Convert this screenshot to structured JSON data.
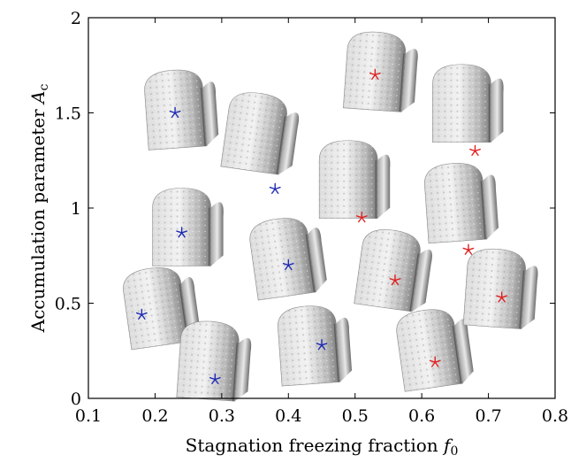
{
  "chart_data": {
    "type": "scatter",
    "title": "",
    "xlabel": "Stagnation freezing fraction",
    "xlabel_symbol": "f",
    "xlabel_subscript": "0",
    "ylabel": "Accumulation parameter",
    "ylabel_symbol": "A",
    "ylabel_subscript": "c",
    "xlim": [
      0.1,
      0.8
    ],
    "ylim": [
      0,
      2
    ],
    "xticks": [
      "0.1",
      "0.2",
      "0.3",
      "0.4",
      "0.5",
      "0.6",
      "0.7",
      "0.8"
    ],
    "yticks": [
      "0",
      "0.5",
      "1",
      "1.5",
      "2"
    ],
    "grid": false,
    "marker": "star",
    "series": [
      {
        "color": "#1f2bb5",
        "points": [
          {
            "x": 0.18,
            "y": 0.44
          },
          {
            "x": 0.23,
            "y": 1.5
          },
          {
            "x": 0.24,
            "y": 0.87
          },
          {
            "x": 0.29,
            "y": 0.1
          },
          {
            "x": 0.38,
            "y": 1.1
          },
          {
            "x": 0.4,
            "y": 0.7
          },
          {
            "x": 0.45,
            "y": 0.28
          }
        ]
      },
      {
        "color": "#e02020",
        "points": [
          {
            "x": 0.51,
            "y": 0.95
          },
          {
            "x": 0.53,
            "y": 1.7
          },
          {
            "x": 0.56,
            "y": 0.62
          },
          {
            "x": 0.62,
            "y": 0.19
          },
          {
            "x": 0.67,
            "y": 0.78
          },
          {
            "x": 0.68,
            "y": 1.3
          },
          {
            "x": 0.72,
            "y": 0.53
          }
        ]
      }
    ],
    "ice_shape_images": [
      {
        "x": 0.2,
        "y": 0.48
      },
      {
        "x": 0.23,
        "y": 1.52
      },
      {
        "x": 0.24,
        "y": 0.9
      },
      {
        "x": 0.28,
        "y": 0.2
      },
      {
        "x": 0.35,
        "y": 1.4
      },
      {
        "x": 0.39,
        "y": 0.74
      },
      {
        "x": 0.43,
        "y": 0.28
      },
      {
        "x": 0.49,
        "y": 1.15
      },
      {
        "x": 0.53,
        "y": 1.72
      },
      {
        "x": 0.55,
        "y": 0.68
      },
      {
        "x": 0.61,
        "y": 0.26
      },
      {
        "x": 0.65,
        "y": 1.03
      },
      {
        "x": 0.66,
        "y": 1.55
      },
      {
        "x": 0.71,
        "y": 0.58
      }
    ]
  }
}
